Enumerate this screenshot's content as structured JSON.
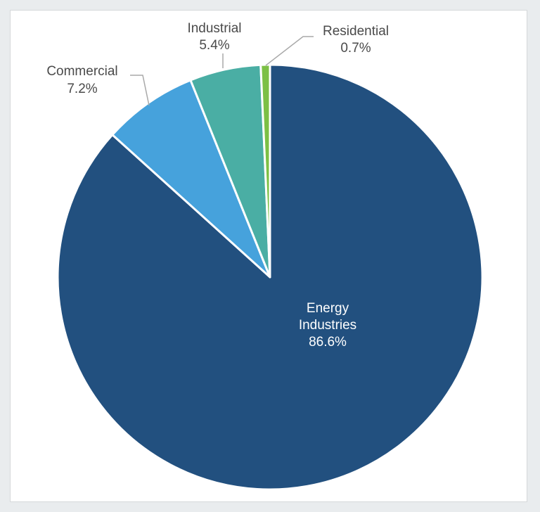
{
  "chart_data": {
    "type": "pie",
    "title": "",
    "start_angle_deg": 0,
    "direction": "clockwise",
    "legend": "none",
    "slices": [
      {
        "name": "Energy Industries",
        "label_lines": [
          "Energy",
          "Industries"
        ],
        "value": 86.6,
        "value_label": "86.6%",
        "color": "#22507f",
        "label_position": "inside"
      },
      {
        "name": "Commercial",
        "label_lines": [
          "Commercial"
        ],
        "value": 7.2,
        "value_label": "7.2%",
        "color": "#46a2dc",
        "label_position": "outside-left"
      },
      {
        "name": "Industrial",
        "label_lines": [
          "Industrial"
        ],
        "value": 5.4,
        "value_label": "5.4%",
        "color": "#4aaea4",
        "label_position": "outside-top"
      },
      {
        "name": "Residential",
        "label_lines": [
          "Residential"
        ],
        "value": 0.7,
        "value_label": "0.7%",
        "color": "#7cc045",
        "label_position": "outside-top-right"
      }
    ],
    "slice_border_color": "#ffffff",
    "leader_line_color": "#a9a9a9"
  }
}
